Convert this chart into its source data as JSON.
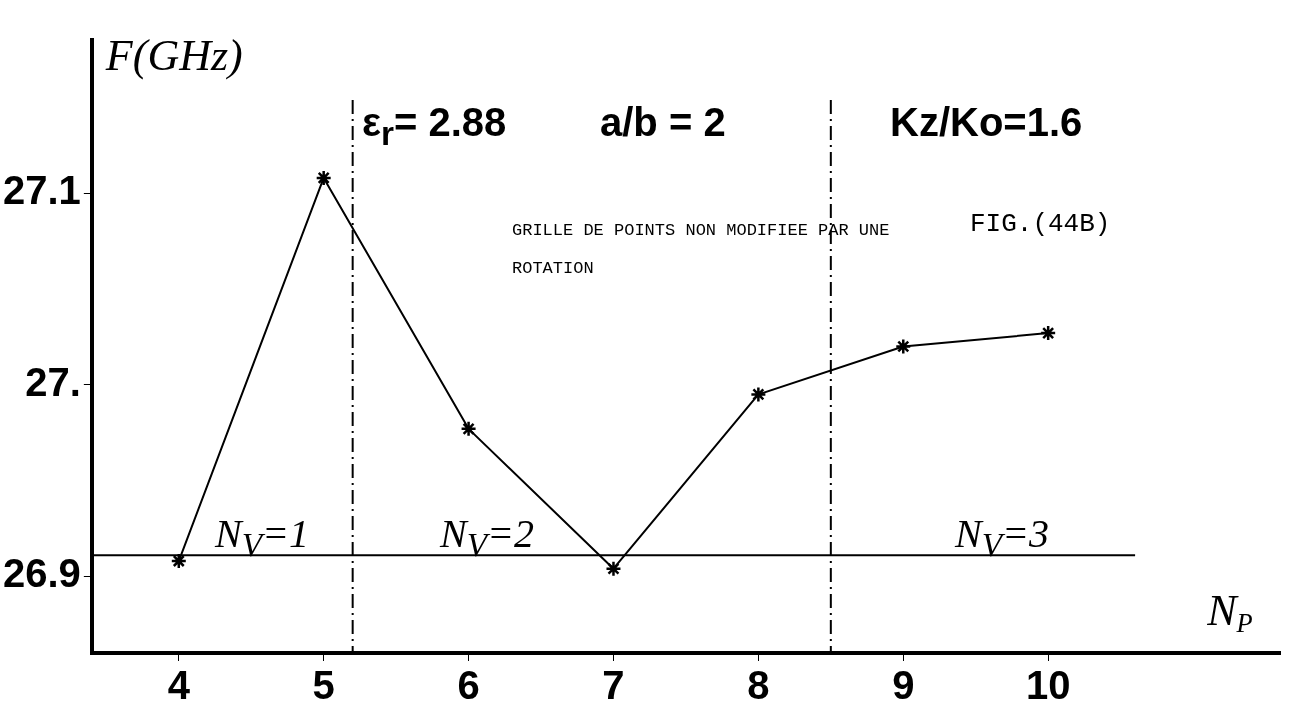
{
  "chart_data": {
    "type": "line",
    "xlabel": "N$_{P}$",
    "ylabel": "F(GHz)",
    "x": [
      4,
      5,
      6,
      7,
      8,
      9,
      10
    ],
    "series": [
      {
        "color": "#000000",
        "values": [
          26.908,
          27.108,
          26.977,
          26.904,
          26.995,
          27.02,
          27.027
        ]
      }
    ],
    "xlim": [
      3.4,
      11.6
    ],
    "xticks": [
      4,
      5,
      6,
      7,
      8,
      9,
      10
    ],
    "ylim": [
      26.86,
      27.18
    ],
    "yticks": [
      {
        "value": 26.9,
        "label": "26.9"
      },
      {
        "value": 27,
        "label": "27."
      },
      {
        "value": 27.1,
        "label": "27.1"
      }
    ],
    "ref_lines": [
      {
        "axis": "x",
        "value": 5.2,
        "line_style": "dashdot",
        "color": "#000000"
      },
      {
        "axis": "x",
        "value": 8.5,
        "line_style": "dashdot",
        "color": "#000000"
      },
      {
        "axis": "y",
        "value": 26.911,
        "color": "#000000"
      }
    ],
    "annotations": [
      "ε$_{r}$= 2.88",
      "a/b = 2",
      "Kz/Ko=1.6",
      "GRILLE DE POINTS NON MODIFIEE PAR UNE ROTATION",
      "FIG.(44B)",
      "N$_{V}$=1",
      "N$_{V}$=2",
      "N$_{V}$=3"
    ],
    "marker": "cross",
    "line_style": "solid",
    "grid": false,
    "legend": false
  }
}
